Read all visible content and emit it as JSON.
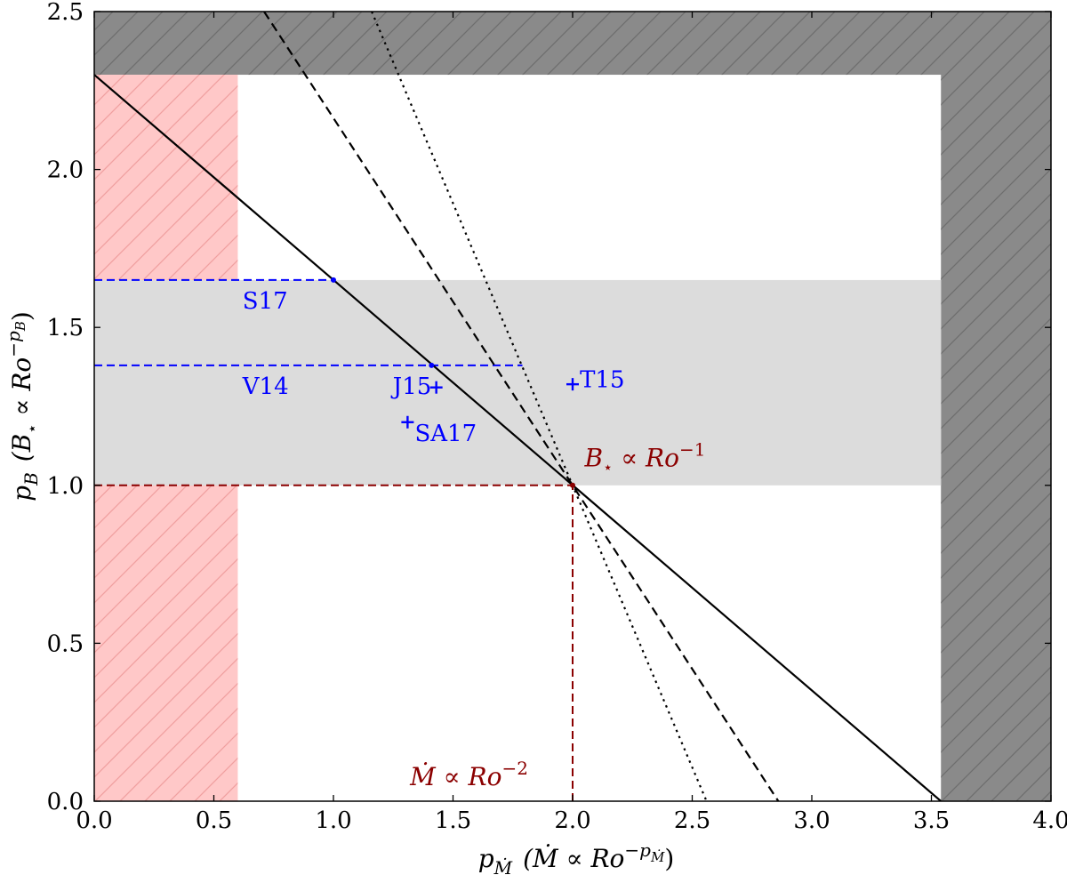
{
  "chart_data": {
    "type": "line",
    "xlabel": "p_Ṁ (Ṁ ∝ Ro^(−p_Ṁ))",
    "xlabel_main": "p",
    "xlabel_sub": "Ṁ",
    "xlabel_paren": "(Ṁ ∝ Ro",
    "xlabel_sup": "−p",
    "xlabel_sup_sub": "Ṁ",
    "xlabel_close": ")",
    "ylabel": "p_B (B⋆ ∝ Ro^(−p_B))",
    "ylabel_main": "p",
    "ylabel_sub": "B",
    "ylabel_paren": "(B",
    "ylabel_star": "⋆",
    "ylabel_prop": " ∝ Ro",
    "ylabel_sup": "−p",
    "ylabel_sup_sub": "B",
    "ylabel_close": ")",
    "xlim": [
      0.0,
      4.0
    ],
    "ylim": [
      0.0,
      2.5
    ],
    "xticks": [
      "0.0",
      "0.5",
      "1.0",
      "1.5",
      "2.0",
      "2.5",
      "3.0",
      "3.5",
      "4.0"
    ],
    "yticks": [
      "0.0",
      "0.5",
      "1.0",
      "1.5",
      "2.0",
      "2.5"
    ],
    "regions": [
      {
        "name": "excluded-top",
        "x": [
          0.0,
          4.0
        ],
        "y": [
          2.3,
          2.5
        ],
        "color": "#8a8a8a",
        "hatch": true
      },
      {
        "name": "excluded-right",
        "x": [
          3.54,
          4.0
        ],
        "y": [
          0.0,
          2.5
        ],
        "color": "#8a8a8a",
        "hatch": true
      },
      {
        "name": "excluded-left",
        "x": [
          0.0,
          0.6
        ],
        "y": [
          0.0,
          2.3
        ],
        "color": "#ffc8c8",
        "hatch": true
      },
      {
        "name": "observed-band",
        "x": [
          0.0,
          3.54
        ],
        "y": [
          1.0,
          1.65
        ],
        "color": "#dcdcdc",
        "hatch": false
      }
    ],
    "series": [
      {
        "name": "solid",
        "style": "solid",
        "color": "#000000",
        "x": [
          0.0,
          3.54
        ],
        "y": [
          2.3,
          0.0
        ]
      },
      {
        "name": "dashed",
        "style": "dashed",
        "color": "#000000",
        "x": [
          0.71,
          2.86
        ],
        "y": [
          2.5,
          0.0
        ]
      },
      {
        "name": "dotted",
        "style": "dotted",
        "color": "#000000",
        "x": [
          1.16,
          2.56
        ],
        "y": [
          2.5,
          0.0
        ]
      }
    ],
    "reference_lines": [
      {
        "name": "S17-line",
        "color": "#0000ff",
        "x": [
          0.0,
          1.0
        ],
        "y": [
          1.65,
          1.65
        ]
      },
      {
        "name": "V14-line",
        "color": "#0000ff",
        "x": [
          0.0,
          1.79
        ],
        "y": [
          1.38,
          1.38
        ]
      },
      {
        "name": "B-ref-line",
        "color": "#8b0000",
        "x": [
          0.0,
          2.0
        ],
        "y": [
          1.0,
          1.0
        ]
      },
      {
        "name": "Mdot-ref-line",
        "color": "#8b0000",
        "x": [
          2.0,
          2.0
        ],
        "y": [
          0.0,
          1.0
        ]
      }
    ],
    "points": [
      {
        "name": "S17-dot",
        "color": "#0000ff",
        "marker": "dot",
        "x": 1.0,
        "y": 1.65
      },
      {
        "name": "V14-dot",
        "color": "#0000ff",
        "marker": "dot",
        "x": 1.41,
        "y": 1.38
      },
      {
        "name": "J15",
        "color": "#0000ff",
        "marker": "plus",
        "x": 1.43,
        "y": 1.31
      },
      {
        "name": "SA17",
        "color": "#0000ff",
        "marker": "plus",
        "x": 1.31,
        "y": 1.2
      },
      {
        "name": "T15",
        "color": "#0000ff",
        "marker": "plus",
        "x": 2.0,
        "y": 1.32
      },
      {
        "name": "ref-dot",
        "color": "#8b0000",
        "marker": "dot",
        "x": 2.0,
        "y": 1.0
      }
    ],
    "labels": [
      {
        "name": "S17",
        "text": "S17",
        "color": "#0000ff",
        "x": 0.62,
        "y": 1.56,
        "anchor": "start"
      },
      {
        "name": "V14",
        "text": "V14",
        "color": "#0000ff",
        "x": 0.62,
        "y": 1.29,
        "anchor": "start"
      },
      {
        "name": "J15",
        "text": "J15",
        "color": "#0000ff",
        "x": 1.41,
        "y": 1.29,
        "anchor": "end"
      },
      {
        "name": "SA17",
        "text": "SA17",
        "color": "#0000ff",
        "x": 1.34,
        "y": 1.14,
        "anchor": "start"
      },
      {
        "name": "T15",
        "text": "T15",
        "color": "#0000ff",
        "x": 2.03,
        "y": 1.31,
        "anchor": "start"
      }
    ],
    "annotations": [
      {
        "name": "B-relation",
        "color": "#8b0000",
        "main": "B",
        "star": "⋆",
        "rest": " ∝ Ro",
        "sup": "−1",
        "x": 2.05,
        "y": 1.06
      },
      {
        "name": "Mdot-relation",
        "color": "#8b0000",
        "main": "Ṁ",
        "rest": " ∝ Ro",
        "sup": "−2",
        "x": 1.32,
        "y": 0.05
      }
    ]
  }
}
